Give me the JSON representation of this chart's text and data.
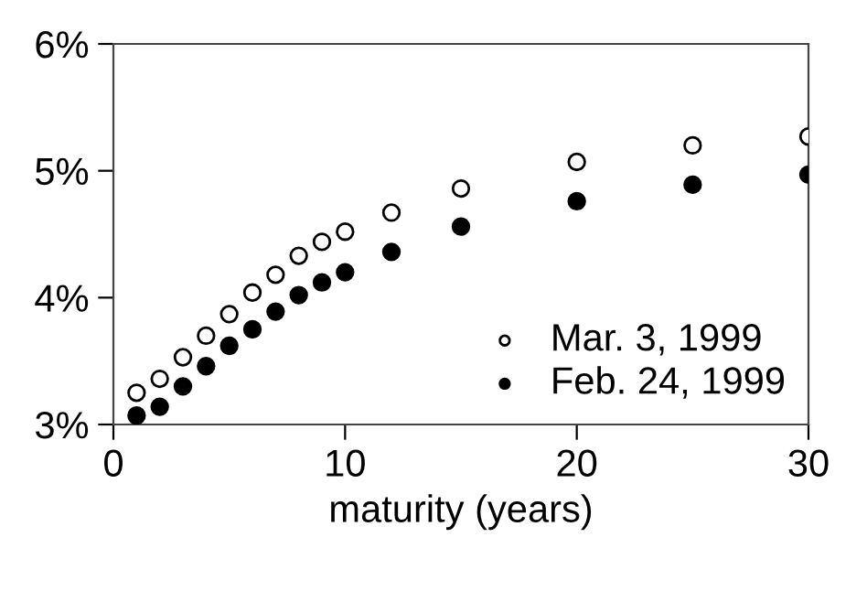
{
  "chart_data": {
    "type": "scatter",
    "xlabel": "maturity (years)",
    "x": [
      1,
      2,
      3,
      4,
      5,
      6,
      7,
      8,
      9,
      10,
      12,
      15,
      20,
      25,
      30
    ],
    "series": [
      {
        "name": "Mar. 3, 1999",
        "color": "#ffffff",
        "marker": "circle",
        "values": [
          3.25,
          3.36,
          3.53,
          3.7,
          3.87,
          4.04,
          4.18,
          4.33,
          4.44,
          4.52,
          4.67,
          4.86,
          5.07,
          5.2,
          5.27
        ]
      },
      {
        "name": "Feb. 24, 1999",
        "color": "#000000",
        "marker": "circle",
        "values": [
          3.07,
          3.14,
          3.3,
          3.46,
          3.62,
          3.75,
          3.89,
          4.02,
          4.12,
          4.2,
          4.36,
          4.56,
          4.76,
          4.89,
          4.97
        ]
      }
    ],
    "xlim": [
      0,
      30
    ],
    "xticks": [
      0,
      10,
      20,
      30
    ],
    "ylim": [
      3,
      6
    ],
    "yticks": [
      {
        "value": 3,
        "label": "3%"
      },
      {
        "value": 4,
        "label": "4%"
      },
      {
        "value": 5,
        "label": "5%"
      },
      {
        "value": 6,
        "label": "6%"
      }
    ],
    "grid": false,
    "legend": "bottom right"
  }
}
